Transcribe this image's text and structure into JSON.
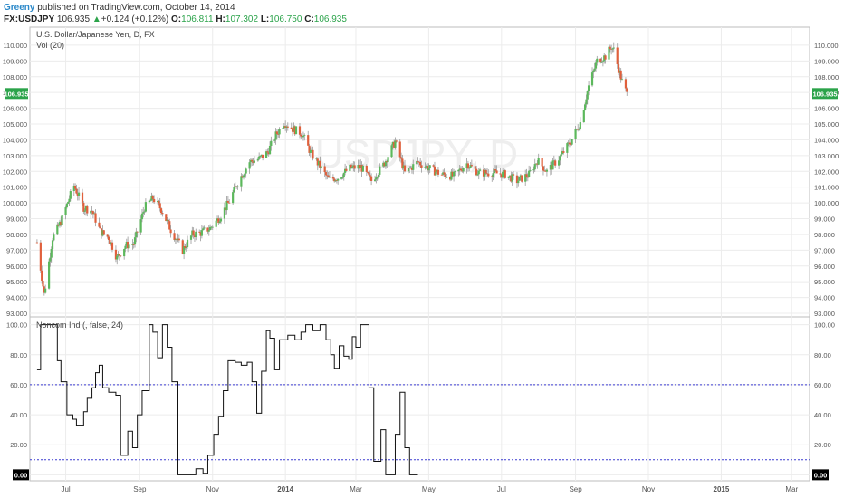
{
  "header": {
    "author": "Greeny",
    "published": "published on TradingView.com, October 14, 2014"
  },
  "quote": {
    "symbol": "FX:USDJPY",
    "last": "106.935",
    "change_arrow": "▲",
    "change": "+0.124 (+0.12%)",
    "o_label": "O:",
    "o_value": "106.811",
    "h_label": "H:",
    "h_value": "107.302",
    "l_label": "L:",
    "l_value": "106.750",
    "c_label": "C:",
    "c_value": "106.935"
  },
  "colors": {
    "up": "#5cb85c",
    "down": "#e0603c",
    "wick": "#9a9a9a",
    "price_tag": "#2ba34a",
    "grid": "#ececec",
    "ind_line": "#111111",
    "level_line": "#3a3ad0",
    "watermark": "#eeeeee"
  },
  "chart_data": [
    {
      "type": "candlestick",
      "title": "U.S. Dollar/Japanese Yen, D, FX",
      "subtitle": "Vol (20)",
      "watermark": "USDJPY, D",
      "last_price_label": "106.935",
      "ylim": [
        93.0,
        110.8
      ],
      "y_ticks": [
        "110.000",
        "109.000",
        "108.000",
        "107.000",
        "106.000",
        "105.000",
        "104.000",
        "103.000",
        "102.000",
        "101.000",
        "100.000",
        "99.000",
        "98.000",
        "97.000",
        "96.000",
        "95.000",
        "94.000",
        "93.000"
      ],
      "x_ticks": [
        "Jul",
        "Sep",
        "Nov",
        "2014",
        "Mar",
        "May",
        "Jul",
        "Sep",
        "Nov",
        "2015",
        "Mar"
      ],
      "close_path": [
        [
          "2013-06-07",
          97.5
        ],
        [
          "2013-06-13",
          94.2
        ],
        [
          "2013-06-20",
          97.8
        ],
        [
          "2013-06-27",
          98.8
        ],
        [
          "2013-07-04",
          100.3
        ],
        [
          "2013-07-08",
          101.1
        ],
        [
          "2013-07-16",
          99.7
        ],
        [
          "2013-07-23",
          99.5
        ],
        [
          "2013-07-30",
          98.2
        ],
        [
          "2013-08-06",
          97.8
        ],
        [
          "2013-08-13",
          96.5
        ],
        [
          "2013-08-20",
          97.3
        ],
        [
          "2013-08-27",
          97.4
        ],
        [
          "2013-09-05",
          99.7
        ],
        [
          "2013-09-12",
          100.3
        ],
        [
          "2013-09-19",
          99.6
        ],
        [
          "2013-09-27",
          98.3
        ],
        [
          "2013-10-07",
          97.0
        ],
        [
          "2013-10-15",
          98.0
        ],
        [
          "2013-10-22",
          98.1
        ],
        [
          "2013-10-30",
          98.4
        ],
        [
          "2013-11-07",
          99.1
        ],
        [
          "2013-11-15",
          100.1
        ],
        [
          "2013-11-22",
          101.3
        ],
        [
          "2013-12-02",
          102.6
        ],
        [
          "2013-12-10",
          102.8
        ],
        [
          "2013-12-17",
          103.2
        ],
        [
          "2013-12-24",
          104.3
        ],
        [
          "2013-12-31",
          105.1
        ],
        [
          "2014-01-07",
          104.7
        ],
        [
          "2014-01-15",
          104.4
        ],
        [
          "2014-01-22",
          103.2
        ],
        [
          "2014-01-30",
          102.3
        ],
        [
          "2014-02-06",
          101.5
        ],
        [
          "2014-02-14",
          101.6
        ],
        [
          "2014-02-24",
          102.2
        ],
        [
          "2014-03-05",
          102.3
        ],
        [
          "2014-03-14",
          101.4
        ],
        [
          "2014-03-24",
          102.4
        ],
        [
          "2014-04-03",
          103.9
        ],
        [
          "2014-04-11",
          101.9
        ],
        [
          "2014-04-22",
          102.6
        ],
        [
          "2014-05-01",
          102.2
        ],
        [
          "2014-05-12",
          101.8
        ],
        [
          "2014-05-22",
          101.7
        ],
        [
          "2014-06-02",
          102.5
        ],
        [
          "2014-06-12",
          101.9
        ],
        [
          "2014-06-24",
          101.9
        ],
        [
          "2014-07-04",
          101.8
        ],
        [
          "2014-07-14",
          101.4
        ],
        [
          "2014-07-24",
          101.8
        ],
        [
          "2014-07-31",
          102.7
        ],
        [
          "2014-08-08",
          102.0
        ],
        [
          "2014-08-19",
          102.9
        ],
        [
          "2014-08-28",
          103.9
        ],
        [
          "2014-09-05",
          105.1
        ],
        [
          "2014-09-12",
          107.4
        ],
        [
          "2014-09-19",
          109.0
        ],
        [
          "2014-09-26",
          109.3
        ],
        [
          "2014-10-01",
          109.9
        ],
        [
          "2014-10-03",
          109.7
        ],
        [
          "2014-10-07",
          108.5
        ],
        [
          "2014-10-10",
          107.7
        ],
        [
          "2014-10-14",
          106.9
        ]
      ]
    },
    {
      "type": "line",
      "title": "Noncom Ind (, false, 24)",
      "last_value_label": "0.00",
      "ylim": [
        -4,
        104
      ],
      "y_ticks": [
        "100.00",
        "80.00",
        "60.00",
        "40.00",
        "20.00",
        "0.00"
      ],
      "levels": [
        60,
        10
      ],
      "x_ticks": [
        "Jul",
        "Sep",
        "Nov",
        "2014",
        "Mar",
        "May",
        "Jul",
        "Sep",
        "Nov",
        "2015",
        "Mar"
      ],
      "step_series": [
        [
          "2013-06-07",
          70
        ],
        [
          "2013-06-10",
          100
        ],
        [
          "2013-06-24",
          76
        ],
        [
          "2013-06-27",
          62
        ],
        [
          "2013-07-02",
          40
        ],
        [
          "2013-07-07",
          37
        ],
        [
          "2013-07-10",
          33
        ],
        [
          "2013-07-16",
          42
        ],
        [
          "2013-07-19",
          51
        ],
        [
          "2013-07-23",
          58
        ],
        [
          "2013-07-26",
          68
        ],
        [
          "2013-07-29",
          73
        ],
        [
          "2013-08-01",
          58
        ],
        [
          "2013-08-06",
          55
        ],
        [
          "2013-08-12",
          53
        ],
        [
          "2013-08-16",
          13
        ],
        [
          "2013-08-22",
          29
        ],
        [
          "2013-08-26",
          18
        ],
        [
          "2013-08-30",
          40
        ],
        [
          "2013-09-03",
          56
        ],
        [
          "2013-09-09",
          100
        ],
        [
          "2013-09-12",
          95
        ],
        [
          "2013-09-16",
          78
        ],
        [
          "2013-09-20",
          100
        ],
        [
          "2013-09-24",
          85
        ],
        [
          "2013-09-28",
          62
        ],
        [
          "2013-10-03",
          0
        ],
        [
          "2013-10-18",
          4
        ],
        [
          "2013-10-24",
          1
        ],
        [
          "2013-10-28",
          13
        ],
        [
          "2013-11-02",
          27
        ],
        [
          "2013-11-06",
          39
        ],
        [
          "2013-11-10",
          56
        ],
        [
          "2013-11-14",
          76
        ],
        [
          "2013-11-20",
          75
        ],
        [
          "2013-11-25",
          73
        ],
        [
          "2013-11-30",
          75
        ],
        [
          "2013-12-04",
          62
        ],
        [
          "2013-12-08",
          41
        ],
        [
          "2013-12-12",
          69
        ],
        [
          "2013-12-16",
          96
        ],
        [
          "2013-12-19",
          91
        ],
        [
          "2013-12-23",
          70
        ],
        [
          "2013-12-27",
          90
        ],
        [
          "2014-01-03",
          93
        ],
        [
          "2014-01-09",
          90
        ],
        [
          "2014-01-14",
          95
        ],
        [
          "2014-01-18",
          100
        ],
        [
          "2014-01-24",
          96
        ],
        [
          "2014-01-30",
          100
        ],
        [
          "2014-02-04",
          90
        ],
        [
          "2014-02-08",
          80
        ],
        [
          "2014-02-11",
          71
        ],
        [
          "2014-02-15",
          86
        ],
        [
          "2014-02-19",
          79
        ],
        [
          "2014-02-23",
          77
        ],
        [
          "2014-02-26",
          92
        ],
        [
          "2014-03-01",
          85
        ],
        [
          "2014-03-05",
          100
        ],
        [
          "2014-03-12",
          58
        ],
        [
          "2014-03-16",
          9
        ],
        [
          "2014-03-22",
          30
        ],
        [
          "2014-03-26",
          0
        ],
        [
          "2014-04-03",
          27
        ],
        [
          "2014-04-07",
          55
        ],
        [
          "2014-04-11",
          18
        ],
        [
          "2014-04-15",
          0
        ],
        [
          "2014-04-22",
          0
        ]
      ]
    }
  ]
}
